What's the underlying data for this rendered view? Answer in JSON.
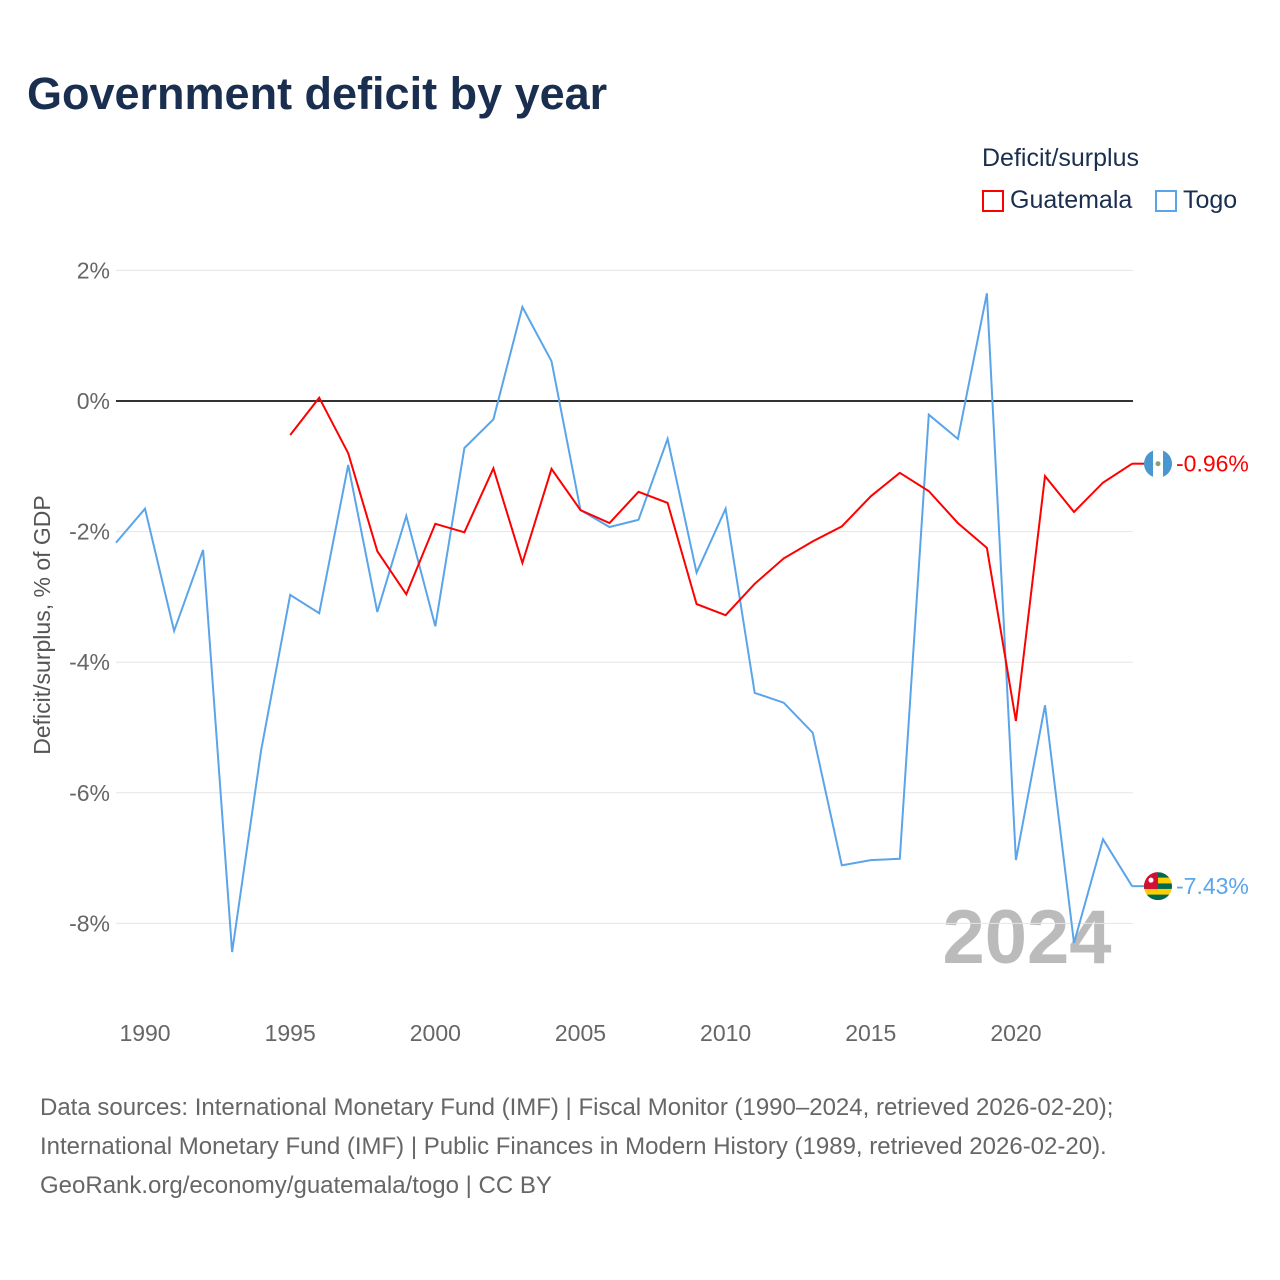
{
  "title": "Government deficit by year",
  "legend": {
    "title": "Deficit/surplus",
    "items": [
      {
        "name": "Guatemala",
        "color": "#ff0000"
      },
      {
        "name": "Togo",
        "color": "#5aa5ea"
      }
    ]
  },
  "year_watermark": "2024",
  "footer": [
    "Data sources: International Monetary Fund (IMF) | Fiscal Monitor (1990–2024, retrieved 2026-02-20);",
    "International Monetary Fund (IMF) | Public Finances in Modern History (1989, retrieved 2026-02-20).",
    "GeoRank.org/economy/guatemala/togo | CC BY"
  ],
  "chart_data": {
    "type": "line",
    "title": "Government deficit by year",
    "xlabel": "",
    "ylabel": "Deficit/surplus, % of GDP",
    "xlim": [
      1989,
      2024
    ],
    "ylim": [
      -9.5,
      2.5
    ],
    "x_ticks": [
      1990,
      1995,
      2000,
      2005,
      2010,
      2015,
      2020
    ],
    "y_ticks": [
      2,
      0,
      -2,
      -4,
      -6,
      -8
    ],
    "y_tick_labels": [
      "2%",
      "0%",
      "-2%",
      "-4%",
      "-6%",
      "-8%"
    ],
    "grid": true,
    "legend_position": "top-right",
    "series": [
      {
        "name": "Guatemala",
        "color": "#ff0000",
        "end_label": "-0.96%",
        "x": [
          1995,
          1996,
          1997,
          1998,
          1999,
          2000,
          2001,
          2002,
          2003,
          2004,
          2005,
          2006,
          2007,
          2008,
          2009,
          2010,
          2011,
          2012,
          2013,
          2014,
          2015,
          2016,
          2017,
          2018,
          2019,
          2020,
          2021,
          2022,
          2023,
          2024
        ],
        "values": [
          -0.52,
          0.05,
          -0.8,
          -2.3,
          -2.96,
          -1.88,
          -2.01,
          -1.03,
          -2.48,
          -1.04,
          -1.67,
          -1.87,
          -1.39,
          -1.56,
          -3.11,
          -3.28,
          -2.8,
          -2.41,
          -2.15,
          -1.92,
          -1.46,
          -1.1,
          -1.38,
          -1.87,
          -2.25,
          -4.9,
          -1.15,
          -1.7,
          -1.25,
          -0.96
        ]
      },
      {
        "name": "Togo",
        "color": "#5aa5ea",
        "end_label": "-7.43%",
        "x": [
          1989,
          1990,
          1991,
          1992,
          1993,
          1994,
          1995,
          1996,
          1997,
          1998,
          1999,
          2000,
          2001,
          2002,
          2003,
          2004,
          2005,
          2006,
          2007,
          2008,
          2009,
          2010,
          2011,
          2012,
          2013,
          2014,
          2015,
          2016,
          2017,
          2018,
          2019,
          2020,
          2021,
          2022,
          2023,
          2024
        ],
        "values": [
          -2.17,
          -1.65,
          -3.52,
          -2.28,
          -8.44,
          -5.35,
          -2.97,
          -3.25,
          -0.98,
          -3.23,
          -1.76,
          -3.45,
          -0.72,
          -0.28,
          1.44,
          0.61,
          -1.67,
          -1.93,
          -1.82,
          -0.58,
          -2.63,
          -1.65,
          -4.47,
          -4.62,
          -5.08,
          -7.11,
          -7.03,
          -7.01,
          -0.21,
          -0.58,
          1.65,
          -7.03,
          -4.66,
          -8.3,
          -6.71,
          -7.43
        ]
      }
    ]
  }
}
